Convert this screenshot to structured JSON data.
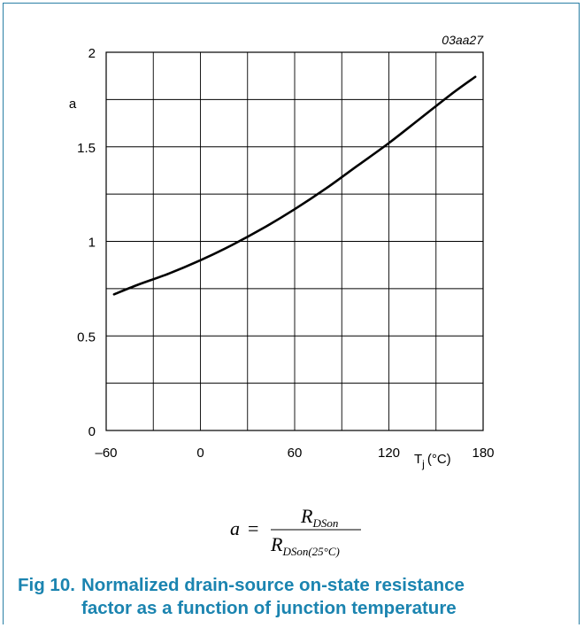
{
  "chart_data": {
    "type": "line",
    "code": "03aa27",
    "ylabel": "a",
    "xlabel_main": "T",
    "xlabel_sub": "j",
    "xlabel_unit": "(°C)",
    "xlim": [
      -60,
      180
    ],
    "ylim": [
      0,
      2
    ],
    "x_ticks": [
      -60,
      0,
      60,
      120,
      180
    ],
    "x_tick_labels": [
      "–60",
      "0",
      "60",
      "120",
      "180"
    ],
    "y_ticks": [
      0,
      0.5,
      1,
      1.5,
      2
    ],
    "y_tick_labels": [
      "0",
      "0.5",
      "1",
      "1.5",
      "2"
    ],
    "x_grid_step": 30,
    "y_grid_step": 0.25,
    "grid": true,
    "series": [
      {
        "x": [
          -55,
          -40,
          -20,
          0,
          20,
          40,
          60,
          80,
          100,
          120,
          140,
          160,
          175
        ],
        "y": [
          0.72,
          0.77,
          0.83,
          0.9,
          0.98,
          1.07,
          1.17,
          1.28,
          1.4,
          1.52,
          1.65,
          1.78,
          1.87
        ]
      }
    ]
  },
  "formula": {
    "lhs": "a",
    "eq": "=",
    "num_main": "R",
    "num_sub": "DSon",
    "den_main": "R",
    "den_sub": "DSon(25°C)"
  },
  "caption": {
    "number": "Fig 10.",
    "line1": "Normalized drain-source on-state resistance",
    "line2": "factor as a function of junction temperature"
  }
}
